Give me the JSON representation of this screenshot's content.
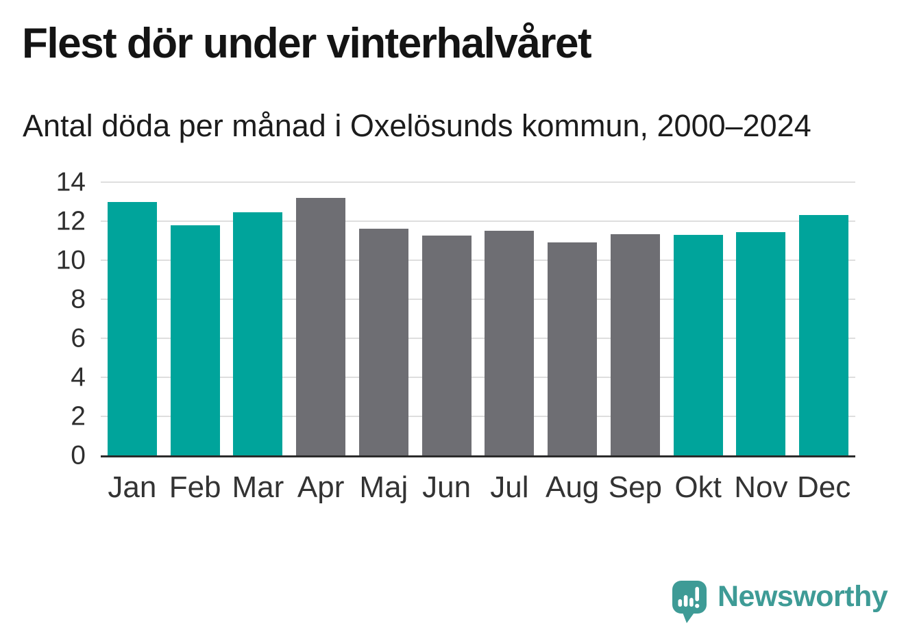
{
  "chart_data": {
    "type": "bar",
    "title": "Flest dör under vinterhalvåret",
    "subtitle": "Antal döda per månad i Oxelösunds kommun, 2000–2024",
    "categories": [
      "Jan",
      "Feb",
      "Mar",
      "Apr",
      "Maj",
      "Jun",
      "Jul",
      "Aug",
      "Sep",
      "Okt",
      "Nov",
      "Dec"
    ],
    "values": [
      13.0,
      11.8,
      12.45,
      13.2,
      11.6,
      11.25,
      11.5,
      10.9,
      11.35,
      11.3,
      11.45,
      12.3
    ],
    "groups": [
      "winter",
      "winter",
      "winter",
      "summer",
      "summer",
      "summer",
      "summer",
      "summer",
      "summer",
      "winter",
      "winter",
      "winter"
    ],
    "group_colors": {
      "winter": "#00A49B",
      "summer": "#6E6E73"
    },
    "xlabel": "",
    "ylabel": "",
    "ylim": [
      0,
      14
    ],
    "yticks": [
      0,
      2,
      4,
      6,
      8,
      10,
      12,
      14
    ],
    "grid": "horizontal",
    "legend": "none"
  },
  "branding": {
    "logo_text": "Newsworthy",
    "logo_color": "#3E9B96"
  },
  "colors": {
    "background": "#FFFFFF",
    "gridline": "#DEDEDE",
    "axis": "#2B2B2B",
    "title_text": "#141414",
    "subtitle_text": "#1C1C1C",
    "ytick_text": "#2E2E2E",
    "xtick_text": "#333333"
  }
}
